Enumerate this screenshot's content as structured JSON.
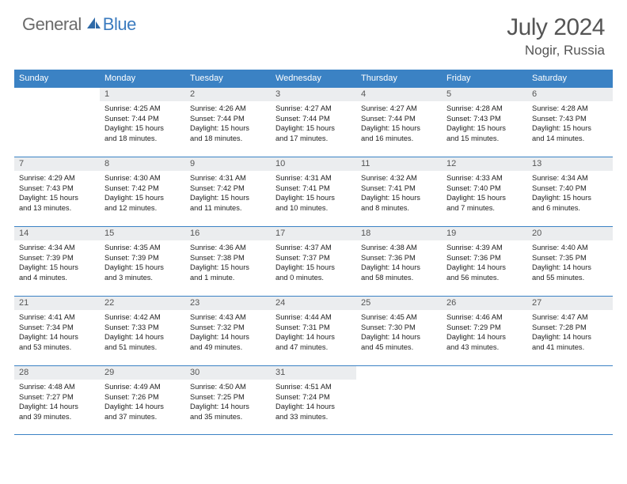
{
  "brand": {
    "part1": "General",
    "part2": "Blue"
  },
  "title": "July 2024",
  "location": "Nogir, Russia",
  "colors": {
    "header_bg": "#3b82c4",
    "header_text": "#ffffff",
    "daynum_bg": "#ebedef",
    "body_text": "#222222",
    "title_text": "#555555",
    "logo_gray": "#6b6b6b",
    "logo_blue": "#3b7bbf",
    "border": "#3b82c4",
    "page_bg": "#ffffff"
  },
  "weekdays": [
    "Sunday",
    "Monday",
    "Tuesday",
    "Wednesday",
    "Thursday",
    "Friday",
    "Saturday"
  ],
  "weeks": [
    [
      null,
      {
        "n": "1",
        "sr": "Sunrise: 4:25 AM",
        "ss": "Sunset: 7:44 PM",
        "d1": "Daylight: 15 hours",
        "d2": "and 18 minutes."
      },
      {
        "n": "2",
        "sr": "Sunrise: 4:26 AM",
        "ss": "Sunset: 7:44 PM",
        "d1": "Daylight: 15 hours",
        "d2": "and 18 minutes."
      },
      {
        "n": "3",
        "sr": "Sunrise: 4:27 AM",
        "ss": "Sunset: 7:44 PM",
        "d1": "Daylight: 15 hours",
        "d2": "and 17 minutes."
      },
      {
        "n": "4",
        "sr": "Sunrise: 4:27 AM",
        "ss": "Sunset: 7:44 PM",
        "d1": "Daylight: 15 hours",
        "d2": "and 16 minutes."
      },
      {
        "n": "5",
        "sr": "Sunrise: 4:28 AM",
        "ss": "Sunset: 7:43 PM",
        "d1": "Daylight: 15 hours",
        "d2": "and 15 minutes."
      },
      {
        "n": "6",
        "sr": "Sunrise: 4:28 AM",
        "ss": "Sunset: 7:43 PM",
        "d1": "Daylight: 15 hours",
        "d2": "and 14 minutes."
      }
    ],
    [
      {
        "n": "7",
        "sr": "Sunrise: 4:29 AM",
        "ss": "Sunset: 7:43 PM",
        "d1": "Daylight: 15 hours",
        "d2": "and 13 minutes."
      },
      {
        "n": "8",
        "sr": "Sunrise: 4:30 AM",
        "ss": "Sunset: 7:42 PM",
        "d1": "Daylight: 15 hours",
        "d2": "and 12 minutes."
      },
      {
        "n": "9",
        "sr": "Sunrise: 4:31 AM",
        "ss": "Sunset: 7:42 PM",
        "d1": "Daylight: 15 hours",
        "d2": "and 11 minutes."
      },
      {
        "n": "10",
        "sr": "Sunrise: 4:31 AM",
        "ss": "Sunset: 7:41 PM",
        "d1": "Daylight: 15 hours",
        "d2": "and 10 minutes."
      },
      {
        "n": "11",
        "sr": "Sunrise: 4:32 AM",
        "ss": "Sunset: 7:41 PM",
        "d1": "Daylight: 15 hours",
        "d2": "and 8 minutes."
      },
      {
        "n": "12",
        "sr": "Sunrise: 4:33 AM",
        "ss": "Sunset: 7:40 PM",
        "d1": "Daylight: 15 hours",
        "d2": "and 7 minutes."
      },
      {
        "n": "13",
        "sr": "Sunrise: 4:34 AM",
        "ss": "Sunset: 7:40 PM",
        "d1": "Daylight: 15 hours",
        "d2": "and 6 minutes."
      }
    ],
    [
      {
        "n": "14",
        "sr": "Sunrise: 4:34 AM",
        "ss": "Sunset: 7:39 PM",
        "d1": "Daylight: 15 hours",
        "d2": "and 4 minutes."
      },
      {
        "n": "15",
        "sr": "Sunrise: 4:35 AM",
        "ss": "Sunset: 7:39 PM",
        "d1": "Daylight: 15 hours",
        "d2": "and 3 minutes."
      },
      {
        "n": "16",
        "sr": "Sunrise: 4:36 AM",
        "ss": "Sunset: 7:38 PM",
        "d1": "Daylight: 15 hours",
        "d2": "and 1 minute."
      },
      {
        "n": "17",
        "sr": "Sunrise: 4:37 AM",
        "ss": "Sunset: 7:37 PM",
        "d1": "Daylight: 15 hours",
        "d2": "and 0 minutes."
      },
      {
        "n": "18",
        "sr": "Sunrise: 4:38 AM",
        "ss": "Sunset: 7:36 PM",
        "d1": "Daylight: 14 hours",
        "d2": "and 58 minutes."
      },
      {
        "n": "19",
        "sr": "Sunrise: 4:39 AM",
        "ss": "Sunset: 7:36 PM",
        "d1": "Daylight: 14 hours",
        "d2": "and 56 minutes."
      },
      {
        "n": "20",
        "sr": "Sunrise: 4:40 AM",
        "ss": "Sunset: 7:35 PM",
        "d1": "Daylight: 14 hours",
        "d2": "and 55 minutes."
      }
    ],
    [
      {
        "n": "21",
        "sr": "Sunrise: 4:41 AM",
        "ss": "Sunset: 7:34 PM",
        "d1": "Daylight: 14 hours",
        "d2": "and 53 minutes."
      },
      {
        "n": "22",
        "sr": "Sunrise: 4:42 AM",
        "ss": "Sunset: 7:33 PM",
        "d1": "Daylight: 14 hours",
        "d2": "and 51 minutes."
      },
      {
        "n": "23",
        "sr": "Sunrise: 4:43 AM",
        "ss": "Sunset: 7:32 PM",
        "d1": "Daylight: 14 hours",
        "d2": "and 49 minutes."
      },
      {
        "n": "24",
        "sr": "Sunrise: 4:44 AM",
        "ss": "Sunset: 7:31 PM",
        "d1": "Daylight: 14 hours",
        "d2": "and 47 minutes."
      },
      {
        "n": "25",
        "sr": "Sunrise: 4:45 AM",
        "ss": "Sunset: 7:30 PM",
        "d1": "Daylight: 14 hours",
        "d2": "and 45 minutes."
      },
      {
        "n": "26",
        "sr": "Sunrise: 4:46 AM",
        "ss": "Sunset: 7:29 PM",
        "d1": "Daylight: 14 hours",
        "d2": "and 43 minutes."
      },
      {
        "n": "27",
        "sr": "Sunrise: 4:47 AM",
        "ss": "Sunset: 7:28 PM",
        "d1": "Daylight: 14 hours",
        "d2": "and 41 minutes."
      }
    ],
    [
      {
        "n": "28",
        "sr": "Sunrise: 4:48 AM",
        "ss": "Sunset: 7:27 PM",
        "d1": "Daylight: 14 hours",
        "d2": "and 39 minutes."
      },
      {
        "n": "29",
        "sr": "Sunrise: 4:49 AM",
        "ss": "Sunset: 7:26 PM",
        "d1": "Daylight: 14 hours",
        "d2": "and 37 minutes."
      },
      {
        "n": "30",
        "sr": "Sunrise: 4:50 AM",
        "ss": "Sunset: 7:25 PM",
        "d1": "Daylight: 14 hours",
        "d2": "and 35 minutes."
      },
      {
        "n": "31",
        "sr": "Sunrise: 4:51 AM",
        "ss": "Sunset: 7:24 PM",
        "d1": "Daylight: 14 hours",
        "d2": "and 33 minutes."
      },
      null,
      null,
      null
    ]
  ]
}
